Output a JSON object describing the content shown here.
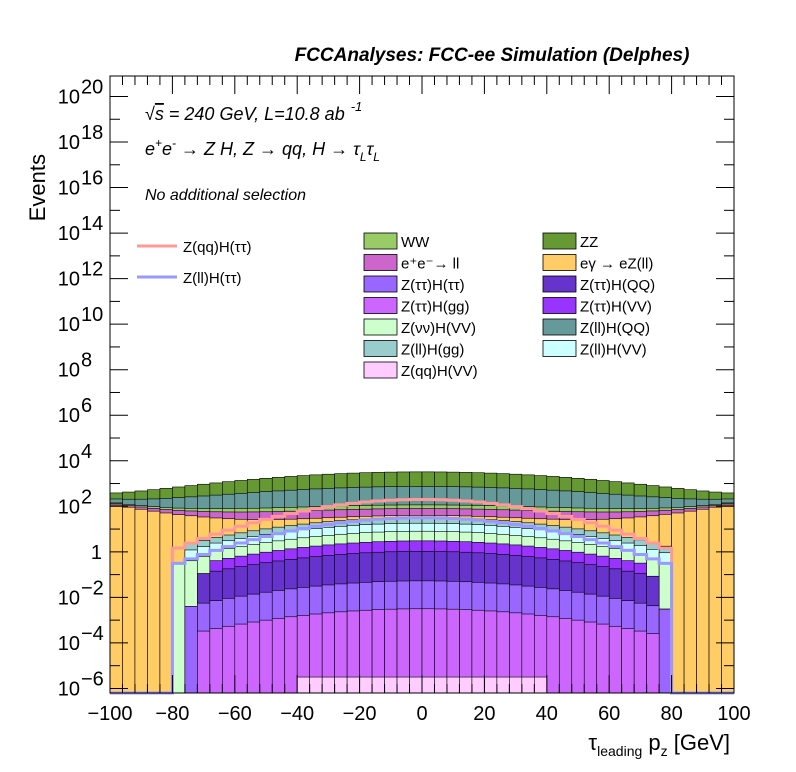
{
  "chart_data": {
    "type": "area",
    "title": "FCCAnalyses: FCC-ee Simulation (Delphes)",
    "xlabel": "τ_leading p_z [GeV]",
    "xlabel_parts": {
      "symbol": "τ",
      "sub": "leading",
      "mid": " p",
      "sub2": "z",
      "unit": " [GeV]"
    },
    "ylabel": "Events",
    "ylog": true,
    "xlim": [
      -100,
      100
    ],
    "ylim_log10": [
      -6.2,
      20.9
    ],
    "grid": false,
    "x_ticks": [
      -100,
      -80,
      -60,
      -40,
      -20,
      0,
      20,
      40,
      60,
      80,
      100
    ],
    "x_tick_labels": [
      "−100",
      "−80",
      "−60",
      "−40",
      "−20",
      "0",
      "20",
      "40",
      "60",
      "80",
      "100"
    ],
    "y_ticks": [
      {
        "exp": 20,
        "base": "10",
        "sup": "20"
      },
      {
        "exp": 18,
        "base": "10",
        "sup": "18"
      },
      {
        "exp": 16,
        "base": "10",
        "sup": "16"
      },
      {
        "exp": 14,
        "base": "10",
        "sup": "14"
      },
      {
        "exp": 12,
        "base": "10",
        "sup": "12"
      },
      {
        "exp": 10,
        "base": "10",
        "sup": "10"
      },
      {
        "exp": 8,
        "base": "10",
        "sup": "8"
      },
      {
        "exp": 6,
        "base": "10",
        "sup": "6"
      },
      {
        "exp": 4,
        "base": "10",
        "sup": "4"
      },
      {
        "exp": 2,
        "base": "10",
        "sup": "2"
      },
      {
        "exp": 0,
        "base": "1",
        "sup": ""
      },
      {
        "exp": -2,
        "base": "10",
        "sup": "−2"
      },
      {
        "exp": -4,
        "base": "10",
        "sup": "−4"
      },
      {
        "exp": -6,
        "base": "10",
        "sup": "−6"
      }
    ],
    "annotations": {
      "energy": {
        "sqrt": "√",
        "s": "s",
        "rest": " = 240 GeV, L=10.8 ab",
        "sup": "-1"
      },
      "process": "e⁺e⁻ → Z H, Z → qq, H → τ_L τ_L",
      "process_parts": {
        "p1": "e",
        "p1sup": "+",
        "p2": "e",
        "p2sup": "-",
        "p3": " → Z H, Z  → qq, H  → τ",
        "sub1": "L",
        "p4": "τ",
        "sub2": "L"
      },
      "selection": "No additional selection"
    },
    "bin_edges_step": 4,
    "stack": [
      {
        "name": "Z(qq)H(VV)",
        "color": "#ffccff",
        "center_log10": -5.5,
        "curve": 2,
        "floor_log10": -5.5,
        "range": [
          -40,
          40
        ]
      },
      {
        "name": "Z(ττ)H(gg)",
        "color": "#cc66ff",
        "center_log10": -2.5,
        "curve": 2,
        "floor_log10": -6.2,
        "range": [
          -72,
          76
        ]
      },
      {
        "name": "Z(ττ)H(ττ)",
        "color": "#9966ff",
        "center_log10": -1.3,
        "curve": 2,
        "floor_log10": -6.2,
        "range": [
          -76,
          80
        ]
      },
      {
        "name": "Z(ττ)H(QQ)",
        "color": "#6633cc",
        "center_log10": 0.0,
        "curve": 2,
        "floor_log10": -2.2,
        "range": [
          -70,
          74
        ]
      },
      {
        "name": "Z(ττ)H(VV)",
        "color": "#9933ff",
        "center_log10": 0.3,
        "curve": 2,
        "floor_log10": -1.5,
        "range": [
          -66,
          70
        ]
      },
      {
        "name": "Z(νν)H(VV)",
        "color": "#ccffcc",
        "center_log10": 0.7,
        "curve": 2,
        "floor_log10": -2.0,
        "range": [
          -80,
          80
        ]
      },
      {
        "name": "Z(ll)H(VV)",
        "color": "#ccffff",
        "center_log10": 1.0,
        "curve": 2,
        "floor_log10": -1.5,
        "range": [
          -76,
          80
        ]
      },
      {
        "name": "Z(ll)H(gg)",
        "color": "#99cccc",
        "center_log10": 1.15,
        "curve": 2,
        "floor_log10": -1.0,
        "range": [
          -76,
          80
        ]
      },
      {
        "name": "eγ → eZ(ll)",
        "color": "#ffcc66",
        "center_log10": 0.9,
        "curve": -1.2,
        "floor_log10": 0.9,
        "range": [
          -100,
          100
        ]
      },
      {
        "name": "e⁺e⁻→ ll",
        "color": "#cc66cc",
        "center_log10": 1.6,
        "curve": 0.4,
        "floor_log10": 1.0,
        "range": [
          -100,
          100
        ]
      },
      {
        "name": "WW",
        "color": "#99cc66",
        "center_log10": 1.55,
        "curve": 0.5,
        "floor_log10": 0.8,
        "range": [
          -100,
          100
        ]
      },
      {
        "name": "Z(ll)H(QQ)",
        "color": "#669999",
        "center_log10": 2.8,
        "curve": 1.0,
        "floor_log10": 1.0,
        "range": [
          -100,
          100
        ]
      },
      {
        "name": "ZZ",
        "color": "#669933",
        "center_log10": 3.4,
        "curve": 1.2,
        "floor_log10": 1.4,
        "range": [
          -100,
          100
        ]
      }
    ],
    "lines": [
      {
        "name": "Z(qq)H(ττ)",
        "color": "#ff9999",
        "center_log10": 2.3,
        "curve": 3.5,
        "floor_log10": -6.2,
        "range": [
          -78,
          78
        ]
      },
      {
        "name": "Z(ll)H(ττ)",
        "color": "#9999ff",
        "center_log10": 1.5,
        "curve": 3.3,
        "floor_log10": -6.2,
        "range": [
          -78,
          78
        ]
      }
    ],
    "legend_columns": [
      [
        "WW",
        "e⁺e⁻→ ll",
        "Z(ττ)H(ττ)",
        "Z(ττ)H(gg)",
        "Z(νν)H(VV)",
        "Z(ll)H(gg)",
        "Z(qq)H(VV)"
      ],
      [
        "ZZ",
        "eγ → eZ(ll)",
        "Z(ττ)H(QQ)",
        "Z(ττ)H(VV)",
        "Z(ll)H(QQ)",
        "Z(ll)H(VV)"
      ]
    ],
    "legend_placement": "top-center",
    "line_legend_placement": "top-left"
  }
}
